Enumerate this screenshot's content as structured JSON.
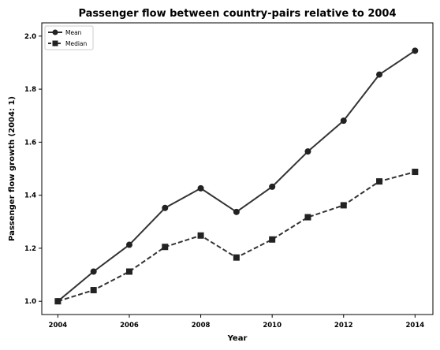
{
  "chart_data": {
    "type": "line",
    "title": "Passenger flow between country-pairs relative to 2004",
    "xlabel": "Year",
    "ylabel": "Passenger flow growth (2004: 1)",
    "x": [
      2004,
      2005,
      2006,
      2007,
      2008,
      2009,
      2010,
      2011,
      2012,
      2013,
      2014
    ],
    "xlim": [
      2003.55,
      2014.5
    ],
    "ylim": [
      0.95,
      2.05
    ],
    "xticks": [
      2004,
      2006,
      2008,
      2010,
      2012,
      2014
    ],
    "yticks": [
      1.0,
      1.2,
      1.4,
      1.6,
      1.8,
      2.0
    ],
    "grid": false,
    "legend_position": "top-left",
    "series": [
      {
        "name": "Mean",
        "values": [
          1.0,
          1.112,
          1.213,
          1.352,
          1.426,
          1.337,
          1.432,
          1.565,
          1.681,
          1.855,
          1.945
        ],
        "color": "#333333",
        "linestyle": "solid",
        "marker": "circle"
      },
      {
        "name": "Median",
        "values": [
          1.0,
          1.042,
          1.112,
          1.205,
          1.248,
          1.165,
          1.233,
          1.317,
          1.362,
          1.452,
          1.488
        ],
        "color": "#333333",
        "linestyle": "dashed",
        "marker": "square"
      }
    ]
  }
}
